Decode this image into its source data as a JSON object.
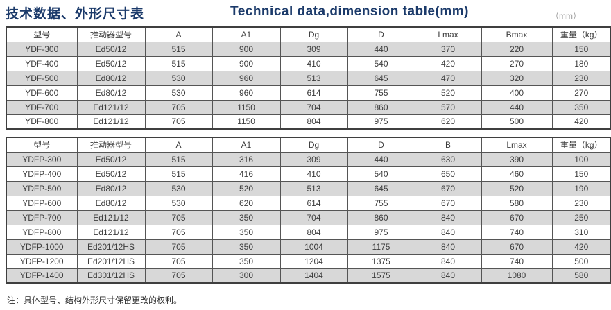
{
  "page": {
    "title_zh": "技术数据、外形尺寸表",
    "title_en": "Technical data,dimension table(mm)",
    "unit_label": "（mm）",
    "footer_note": "注：具体型号、结构外形尺寸保留更改的权利。"
  },
  "colors": {
    "title": "#1b3a6a",
    "shaded_row": "#d8d8d8",
    "border": "#555555",
    "text": "#3d3d3d"
  },
  "tables": [
    {
      "id": "ydf",
      "headers": [
        "型号",
        "推动器型号",
        "A",
        "A1",
        "Dg",
        "D",
        "Lmax",
        "Bmax",
        "重量（kg）"
      ],
      "rows": [
        [
          "YDF-300",
          "Ed50/12",
          "515",
          "900",
          "309",
          "440",
          "370",
          "220",
          "150"
        ],
        [
          "YDF-400",
          "Ed50/12",
          "515",
          "900",
          "410",
          "540",
          "420",
          "270",
          "180"
        ],
        [
          "YDF-500",
          "Ed80/12",
          "530",
          "960",
          "513",
          "645",
          "470",
          "320",
          "230"
        ],
        [
          "YDF-600",
          "Ed80/12",
          "530",
          "960",
          "614",
          "755",
          "520",
          "400",
          "270"
        ],
        [
          "YDF-700",
          "Ed121/12",
          "705",
          "1150",
          "704",
          "860",
          "570",
          "440",
          "350"
        ],
        [
          "YDF-800",
          "Ed121/12",
          "705",
          "1150",
          "804",
          "975",
          "620",
          "500",
          "420"
        ]
      ]
    },
    {
      "id": "ydfp",
      "headers": [
        "型号",
        "推动器型号",
        "A",
        "A1",
        "Dg",
        "D",
        "B",
        "Lmax",
        "重量（kg）"
      ],
      "rows": [
        [
          "YDFP-300",
          "Ed50/12",
          "515",
          "316",
          "309",
          "440",
          "630",
          "390",
          "100"
        ],
        [
          "YDFP-400",
          "Ed50/12",
          "515",
          "416",
          "410",
          "540",
          "650",
          "460",
          "150"
        ],
        [
          "YDFP-500",
          "Ed80/12",
          "530",
          "520",
          "513",
          "645",
          "670",
          "520",
          "190"
        ],
        [
          "YDFP-600",
          "Ed80/12",
          "530",
          "620",
          "614",
          "755",
          "670",
          "580",
          "230"
        ],
        [
          "YDFP-700",
          "Ed121/12",
          "705",
          "350",
          "704",
          "860",
          "840",
          "670",
          "250"
        ],
        [
          "YDFP-800",
          "Ed121/12",
          "705",
          "350",
          "804",
          "975",
          "840",
          "740",
          "310"
        ],
        [
          "YDFP-1000",
          "Ed201/12HS",
          "705",
          "350",
          "1004",
          "1175",
          "840",
          "670",
          "420"
        ],
        [
          "YDFP-1200",
          "Ed201/12HS",
          "705",
          "350",
          "1204",
          "1375",
          "840",
          "740",
          "500"
        ],
        [
          "YDFP-1400",
          "Ed301/12HS",
          "705",
          "300",
          "1404",
          "1575",
          "840",
          "1080",
          "580"
        ]
      ]
    }
  ]
}
